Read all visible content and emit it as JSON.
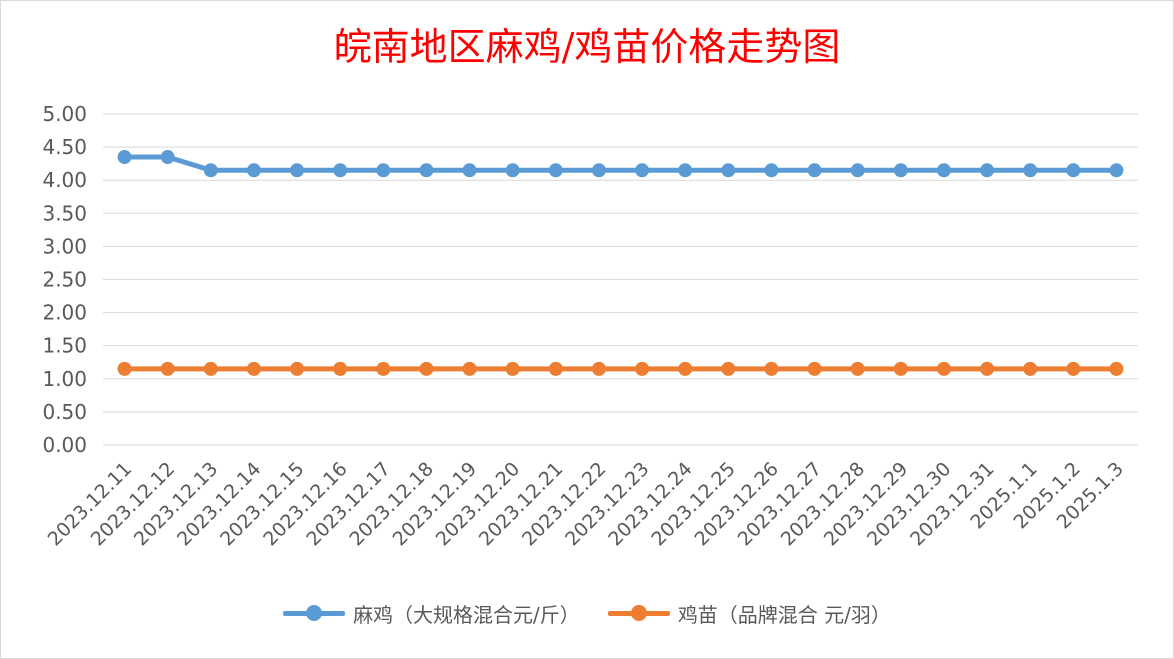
{
  "chart_data": {
    "type": "line",
    "title": "皖南地区麻鸡/鸡苗价格走势图",
    "categories": [
      "2023.12.11",
      "2023.12.12",
      "2023.12.13",
      "2023.12.14",
      "2023.12.15",
      "2023.12.16",
      "2023.12.17",
      "2023.12.18",
      "2023.12.19",
      "2023.12.20",
      "2023.12.21",
      "2023.12.22",
      "2023.12.23",
      "2023.12.24",
      "2023.12.25",
      "2023.12.26",
      "2023.12.27",
      "2023.12.28",
      "2023.12.29",
      "2023.12.30",
      "2023.12.31",
      "2025.1.1",
      "2025.1.2",
      "2025.1.3"
    ],
    "yticks": [
      "0.00",
      "0.50",
      "1.00",
      "1.50",
      "2.00",
      "2.50",
      "3.00",
      "3.50",
      "4.00",
      "4.50",
      "5.00"
    ],
    "ylim": [
      0,
      5
    ],
    "grid": true,
    "legend_position": "bottom",
    "series": [
      {
        "name": "麻鸡（大规格混合元/斤）",
        "color": "#5b9bd5",
        "values": [
          4.35,
          4.35,
          4.15,
          4.15,
          4.15,
          4.15,
          4.15,
          4.15,
          4.15,
          4.15,
          4.15,
          4.15,
          4.15,
          4.15,
          4.15,
          4.15,
          4.15,
          4.15,
          4.15,
          4.15,
          4.15,
          4.15,
          4.15,
          4.15
        ]
      },
      {
        "name": "鸡苗（品牌混合 元/羽）",
        "color": "#ed7d31",
        "values": [
          1.15,
          1.15,
          1.15,
          1.15,
          1.15,
          1.15,
          1.15,
          1.15,
          1.15,
          1.15,
          1.15,
          1.15,
          1.15,
          1.15,
          1.15,
          1.15,
          1.15,
          1.15,
          1.15,
          1.15,
          1.15,
          1.15,
          1.15,
          1.15
        ]
      }
    ]
  }
}
